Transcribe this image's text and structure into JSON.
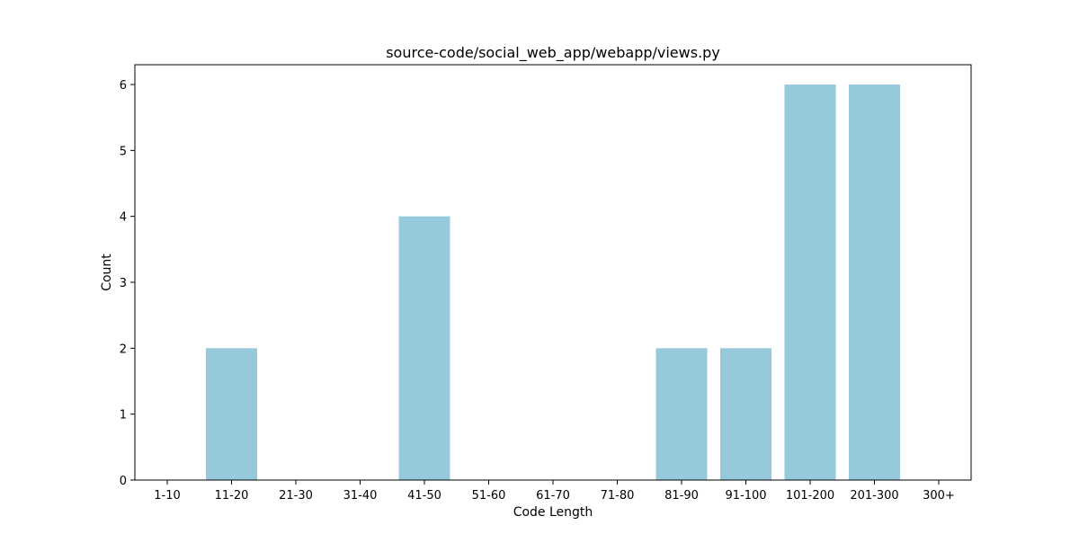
{
  "chart_data": {
    "type": "bar",
    "title": "source-code/social_web_app/webapp/views.py",
    "xlabel": "Code Length",
    "ylabel": "Count",
    "categories": [
      "1-10",
      "11-20",
      "21-30",
      "31-40",
      "41-50",
      "51-60",
      "61-70",
      "71-80",
      "81-90",
      "91-100",
      "101-200",
      "201-300",
      "300+"
    ],
    "values": [
      0,
      2,
      0,
      0,
      4,
      0,
      0,
      0,
      2,
      2,
      6,
      6,
      0
    ],
    "ylim": [
      0,
      6.3
    ],
    "yticks": [
      0,
      1,
      2,
      3,
      4,
      5,
      6
    ],
    "grid": false,
    "bar_color": "#96c9dc"
  }
}
